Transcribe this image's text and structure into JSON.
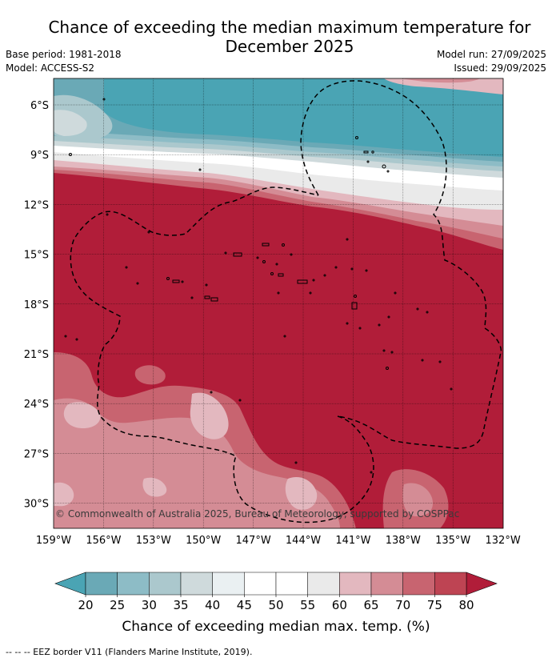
{
  "title_line1": "Chance of exceeding the median maximum temperature for",
  "title_line2": "December 2025",
  "base_period": "Base period: 1981-2018",
  "model": "Model: ACCESS-S2",
  "model_run": "Model run: 27/09/2025",
  "issued": "Issued: 29/09/2025",
  "lat_labels": [
    "6°S",
    "9°S",
    "12°S",
    "15°S",
    "18°S",
    "21°S",
    "24°S",
    "27°S",
    "30°S"
  ],
  "lon_labels": [
    "159°W",
    "156°W",
    "153°W",
    "150°W",
    "147°W",
    "144°W",
    "141°W",
    "138°W",
    "135°W",
    "132°W"
  ],
  "copyright": "© Commonwealth of Australia 2025, Bureau of Meteorology, supported by COSPPac",
  "colorbar": {
    "ticks": [
      "20",
      "25",
      "30",
      "35",
      "40",
      "45",
      "50",
      "55",
      "60",
      "65",
      "70",
      "75",
      "80"
    ],
    "colors": [
      "#6aa9b6",
      "#8dbcc6",
      "#abc8cd",
      "#cfdadc",
      "#eaf0f2",
      "#ffffff",
      "#ffffff",
      "#eaeaea",
      "#e3b8bf",
      "#d48c95",
      "#c86470",
      "#be4453"
    ],
    "low_color": "#4aa4b4",
    "high_color": "#b11d39",
    "label": "Chance of exceeding median max. temp. (%)"
  },
  "footnote": "--  --  -- EEZ border V11 (Flanders Marine Institute, 2019).",
  "palette": {
    "teal": "#4aa4b4",
    "red": "#b11d39"
  }
}
